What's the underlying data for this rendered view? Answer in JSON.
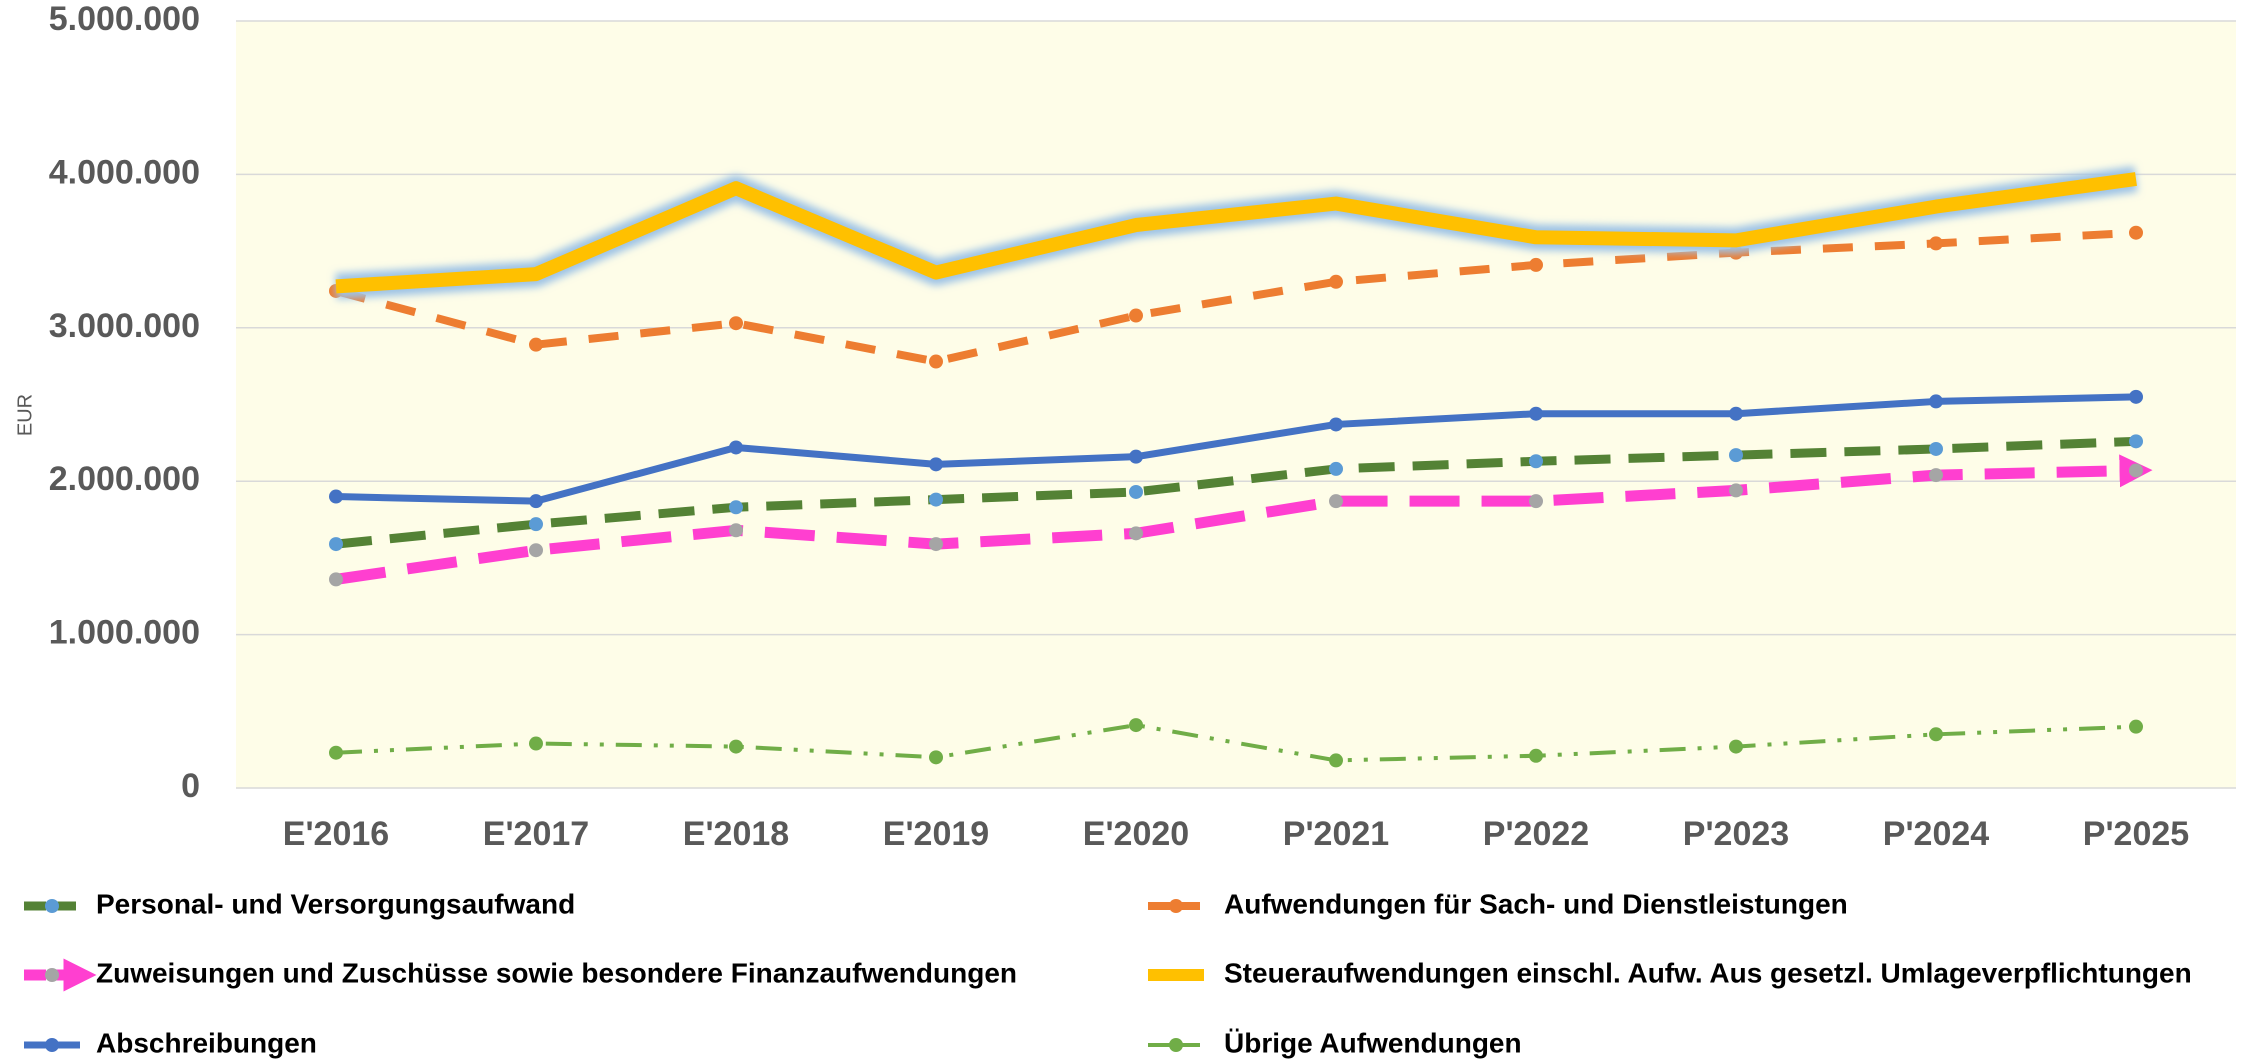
{
  "chart_data": {
    "type": "line",
    "y_label": "EUR",
    "categories": [
      "E'2016",
      "E'2017",
      "E'2018",
      "E'2019",
      "E'2020",
      "P'2021",
      "P'2022",
      "P'2023",
      "P'2024",
      "P'2025"
    ],
    "ylim": [
      0,
      5000000
    ],
    "yticks": [
      0,
      {
        "value": 1000000,
        "label": "1.000.000"
      },
      {
        "value": 2000000,
        "label": "2.000.000"
      },
      {
        "value": 3000000,
        "label": "3.000.000"
      },
      {
        "value": 4000000,
        "label": "4.000.000"
      },
      {
        "value": 5000000,
        "label": "5.000.000"
      }
    ],
    "grid": true,
    "plot_background": "#fefde8",
    "series": [
      {
        "name": "Personal- und Versorgungsaufwand",
        "color": "#548235",
        "marker_color": "#5b9bd5",
        "values": [
          1590000,
          1720000,
          1830000,
          1880000,
          1930000,
          2080000,
          2130000,
          2170000,
          2210000,
          2260000
        ]
      },
      {
        "name": "Aufwendungen für Sach- und Dienstleistungen",
        "color": "#ed7d31",
        "marker_color": "#ed7d31",
        "values": [
          3240000,
          2890000,
          3030000,
          2780000,
          3080000,
          3300000,
          3410000,
          3490000,
          3550000,
          3620000
        ]
      },
      {
        "name": "Zuweisungen und Zuschüsse sowie besondere Finanzaufwendungen",
        "color": "#ff3fd0",
        "marker_color": "#a5a5a5",
        "values": [
          1360000,
          1550000,
          1680000,
          1590000,
          1660000,
          1870000,
          1870000,
          1940000,
          2040000,
          2070000
        ]
      },
      {
        "name": "Steueraufwendungen einschl. Aufw. Aus gesetzl. Umlageverpflichtungen",
        "color": "#ffc000",
        "marker_color": "#ffc000",
        "values": [
          3270000,
          3350000,
          3910000,
          3360000,
          3670000,
          3810000,
          3590000,
          3570000,
          3790000,
          3970000
        ]
      },
      {
        "name": "Abschreibungen",
        "color": "#4472c4",
        "marker_color": "#4472c4",
        "values": [
          1900000,
          1870000,
          2220000,
          2110000,
          2160000,
          2370000,
          2440000,
          2440000,
          2520000,
          2550000
        ]
      },
      {
        "name": "Übrige Aufwendungen",
        "color": "#70ad47",
        "marker_color": "#70ad47",
        "values": [
          230000,
          290000,
          270000,
          200000,
          410000,
          180000,
          210000,
          270000,
          350000,
          400000
        ]
      }
    ]
  }
}
